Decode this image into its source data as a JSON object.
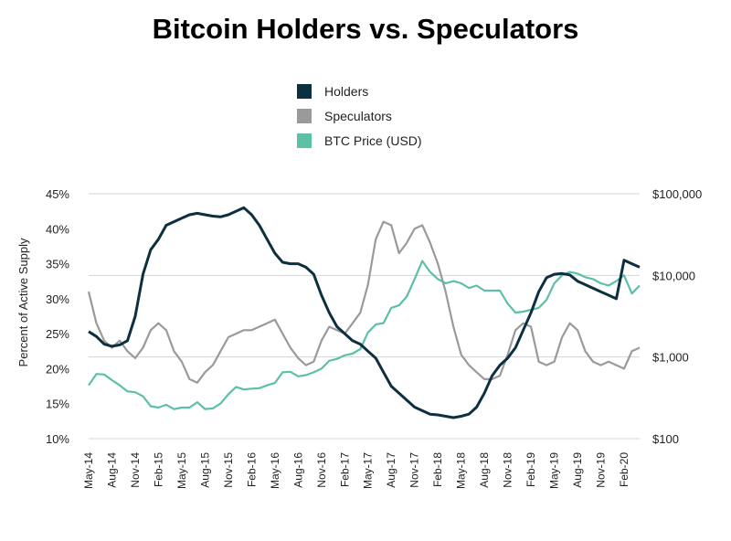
{
  "chart_data": {
    "type": "line",
    "title": "Bitcoin Holders vs. Speculators",
    "ylabel": "Percent of Active Supply",
    "y2label": "",
    "ylim": [
      10,
      45
    ],
    "y_ticks": [
      "10%",
      "15%",
      "20%",
      "25%",
      "30%",
      "35%",
      "40%",
      "45%"
    ],
    "y2_scale": "log",
    "y2lim": [
      100,
      100000
    ],
    "y2_ticks": [
      "$100",
      "$1,000",
      "$10,000",
      "$100,000"
    ],
    "x_labels": [
      "May-14",
      "Aug-14",
      "Nov-14",
      "Feb-15",
      "May-15",
      "Aug-15",
      "Nov-15",
      "Feb-16",
      "May-16",
      "Aug-16",
      "Nov-16",
      "Feb-17",
      "May-17",
      "Aug-17",
      "Nov-17",
      "Feb-18",
      "May-18",
      "Aug-18",
      "Nov-18",
      "Feb-19",
      "May-19",
      "Aug-19",
      "Nov-19",
      "Feb-20"
    ],
    "grid": true,
    "legend_position": "top-center",
    "series": [
      {
        "name": "Holders",
        "axis": "left",
        "color": "#0d2f3f",
        "x": [
          "2014-05",
          "2014-06",
          "2014-07",
          "2014-08",
          "2014-09",
          "2014-10",
          "2014-11",
          "2014-12",
          "2015-01",
          "2015-02",
          "2015-03",
          "2015-04",
          "2015-05",
          "2015-06",
          "2015-07",
          "2015-08",
          "2015-09",
          "2015-10",
          "2015-11",
          "2015-12",
          "2016-01",
          "2016-02",
          "2016-03",
          "2016-04",
          "2016-05",
          "2016-06",
          "2016-07",
          "2016-08",
          "2016-09",
          "2016-10",
          "2016-11",
          "2016-12",
          "2017-01",
          "2017-02",
          "2017-03",
          "2017-04",
          "2017-05",
          "2017-06",
          "2017-07",
          "2017-08",
          "2017-09",
          "2017-10",
          "2017-11",
          "2017-12",
          "2018-01",
          "2018-02",
          "2018-03",
          "2018-04",
          "2018-05",
          "2018-06",
          "2018-07",
          "2018-08",
          "2018-09",
          "2018-10",
          "2018-11",
          "2018-12",
          "2019-01",
          "2019-02",
          "2019-03",
          "2019-04",
          "2019-05",
          "2019-06",
          "2019-07",
          "2019-08",
          "2019-09",
          "2019-10",
          "2019-11",
          "2019-12",
          "2020-01",
          "2020-02",
          "2020-03",
          "2020-04"
        ],
        "values": [
          25.3,
          24.6,
          23.5,
          23.2,
          23.4,
          24.0,
          27.5,
          33.5,
          37.0,
          38.5,
          40.5,
          41.0,
          41.5,
          42.0,
          42.2,
          42.0,
          41.8,
          41.7,
          42.0,
          42.5,
          43.0,
          42.0,
          40.5,
          38.5,
          36.5,
          35.2,
          35.0,
          35.0,
          34.5,
          33.5,
          30.5,
          28.0,
          26.0,
          25.0,
          24.0,
          23.5,
          22.5,
          21.5,
          19.5,
          17.5,
          16.5,
          15.5,
          14.5,
          14.0,
          13.5,
          13.4,
          13.2,
          13.0,
          13.2,
          13.5,
          14.5,
          16.5,
          19.0,
          20.5,
          21.5,
          23.0,
          25.5,
          28.0,
          31.0,
          33.0,
          33.5,
          33.6,
          33.4,
          32.5,
          32.0,
          31.5,
          31.0,
          30.5,
          30.0,
          35.5,
          35.0,
          34.5
        ]
      },
      {
        "name": "Speculators",
        "axis": "left",
        "color": "#9a9a9a",
        "x": [
          "2014-05",
          "2014-06",
          "2014-07",
          "2014-08",
          "2014-09",
          "2014-10",
          "2014-11",
          "2014-12",
          "2015-01",
          "2015-02",
          "2015-03",
          "2015-04",
          "2015-05",
          "2015-06",
          "2015-07",
          "2015-08",
          "2015-09",
          "2015-10",
          "2015-11",
          "2015-12",
          "2016-01",
          "2016-02",
          "2016-03",
          "2016-04",
          "2016-05",
          "2016-06",
          "2016-07",
          "2016-08",
          "2016-09",
          "2016-10",
          "2016-11",
          "2016-12",
          "2017-01",
          "2017-02",
          "2017-03",
          "2017-04",
          "2017-05",
          "2017-06",
          "2017-07",
          "2017-08",
          "2017-09",
          "2017-10",
          "2017-11",
          "2017-12",
          "2018-01",
          "2018-02",
          "2018-03",
          "2018-04",
          "2018-05",
          "2018-06",
          "2018-07",
          "2018-08",
          "2018-09",
          "2018-10",
          "2018-11",
          "2018-12",
          "2019-01",
          "2019-02",
          "2019-03",
          "2019-04",
          "2019-05",
          "2019-06",
          "2019-07",
          "2019-08",
          "2019-09",
          "2019-10",
          "2019-11",
          "2019-12",
          "2020-01",
          "2020-02",
          "2020-03",
          "2020-04"
        ],
        "values": [
          31.0,
          26.5,
          24.0,
          23.0,
          24.0,
          22.5,
          21.5,
          23.0,
          25.5,
          26.5,
          25.5,
          22.5,
          21.0,
          18.5,
          18.0,
          19.5,
          20.5,
          22.5,
          24.5,
          25.0,
          25.5,
          25.5,
          26.0,
          26.5,
          27.0,
          25.0,
          23.0,
          21.5,
          20.5,
          21.0,
          24.0,
          26.0,
          25.5,
          25.0,
          26.5,
          28.0,
          32.0,
          38.5,
          41.0,
          40.5,
          36.5,
          38.0,
          40.0,
          40.5,
          38.0,
          35.0,
          31.0,
          26.0,
          22.0,
          20.5,
          19.5,
          18.5,
          18.5,
          19.0,
          22.0,
          25.5,
          26.5,
          26.0,
          21.0,
          20.5,
          21.0,
          24.5,
          26.5,
          25.5,
          22.5,
          21.0,
          20.5,
          21.0,
          20.5,
          20.0,
          22.5,
          23.0
        ]
      },
      {
        "name": "BTC Price (USD)",
        "axis": "right",
        "color": "#5cc0a8",
        "x": [
          "2014-05",
          "2014-06",
          "2014-07",
          "2014-08",
          "2014-09",
          "2014-10",
          "2014-11",
          "2014-12",
          "2015-01",
          "2015-02",
          "2015-03",
          "2015-04",
          "2015-05",
          "2015-06",
          "2015-07",
          "2015-08",
          "2015-09",
          "2015-10",
          "2015-11",
          "2015-12",
          "2016-01",
          "2016-02",
          "2016-03",
          "2016-04",
          "2016-05",
          "2016-06",
          "2016-07",
          "2016-08",
          "2016-09",
          "2016-10",
          "2016-11",
          "2016-12",
          "2017-01",
          "2017-02",
          "2017-03",
          "2017-04",
          "2017-05",
          "2017-06",
          "2017-07",
          "2017-08",
          "2017-09",
          "2017-10",
          "2017-11",
          "2017-12",
          "2018-01",
          "2018-02",
          "2018-03",
          "2018-04",
          "2018-05",
          "2018-06",
          "2018-07",
          "2018-08",
          "2018-09",
          "2018-10",
          "2018-11",
          "2018-12",
          "2019-01",
          "2019-02",
          "2019-03",
          "2019-04",
          "2019-05",
          "2019-06",
          "2019-07",
          "2019-08",
          "2019-09",
          "2019-10",
          "2019-11",
          "2019-12",
          "2020-01",
          "2020-02",
          "2020-03",
          "2020-04"
        ],
        "values": [
          450,
          620,
          610,
          520,
          450,
          380,
          370,
          330,
          250,
          240,
          260,
          230,
          240,
          240,
          280,
          230,
          235,
          270,
          350,
          430,
          400,
          410,
          415,
          450,
          480,
          650,
          660,
          580,
          600,
          650,
          720,
          900,
          950,
          1050,
          1100,
          1250,
          2000,
          2500,
          2600,
          4000,
          4300,
          5500,
          9000,
          15000,
          11000,
          9000,
          8000,
          8500,
          8000,
          7000,
          7500,
          6500,
          6500,
          6500,
          4500,
          3500,
          3600,
          3800,
          4000,
          5000,
          8000,
          10000,
          11000,
          10500,
          9500,
          9000,
          8000,
          7500,
          8500,
          10000,
          6000,
          7500
        ]
      }
    ]
  }
}
